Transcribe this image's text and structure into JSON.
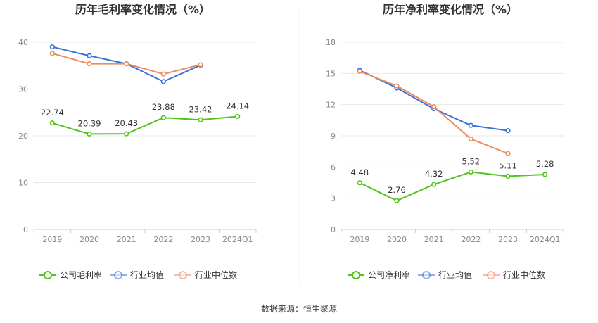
{
  "source": "数据来源：恒生聚源",
  "colors": {
    "company": "#52c41a",
    "avg": "#3a72d8",
    "median": "#f08a5d",
    "grid": "#e8e8e8",
    "axis": "#cccccc"
  },
  "chart_data": [
    {
      "type": "line",
      "title": "历年毛利率变化情况（%）",
      "categories": [
        "2019",
        "2020",
        "2021",
        "2022",
        "2023",
        "2024Q1"
      ],
      "ylim": [
        0,
        40
      ],
      "yticks": [
        0,
        10,
        20,
        30,
        40
      ],
      "grid": true,
      "legend_position": "bottom",
      "series": [
        {
          "name": "公司毛利率",
          "key": "company",
          "values": [
            22.74,
            20.39,
            20.43,
            23.88,
            23.42,
            24.14
          ],
          "labels": [
            "22.74",
            "20.39",
            "20.43",
            "23.88",
            "23.42",
            "24.14"
          ]
        },
        {
          "name": "行业均值",
          "key": "avg",
          "values": [
            39.0,
            37.1,
            35.4,
            31.6,
            35.1,
            null
          ]
        },
        {
          "name": "行业中位数",
          "key": "median",
          "values": [
            37.6,
            35.4,
            35.4,
            33.2,
            35.2,
            null
          ]
        }
      ]
    },
    {
      "type": "line",
      "title": "历年净利率变化情况（%）",
      "categories": [
        "2019",
        "2020",
        "2021",
        "2022",
        "2023",
        "2024Q1"
      ],
      "ylim": [
        0,
        18
      ],
      "yticks": [
        0,
        3,
        6,
        9,
        12,
        15,
        18
      ],
      "grid": true,
      "legend_position": "bottom",
      "series": [
        {
          "name": "公司净利率",
          "key": "company",
          "values": [
            4.48,
            2.76,
            4.32,
            5.52,
            5.11,
            5.28
          ],
          "labels": [
            "4.48",
            "2.76",
            "4.32",
            "5.52",
            "5.11",
            "5.28"
          ]
        },
        {
          "name": "行业均值",
          "key": "avg",
          "values": [
            15.3,
            13.6,
            11.6,
            10.0,
            9.5,
            null
          ]
        },
        {
          "name": "行业中位数",
          "key": "median",
          "values": [
            15.2,
            13.8,
            11.8,
            8.7,
            7.3,
            null
          ]
        }
      ]
    }
  ]
}
